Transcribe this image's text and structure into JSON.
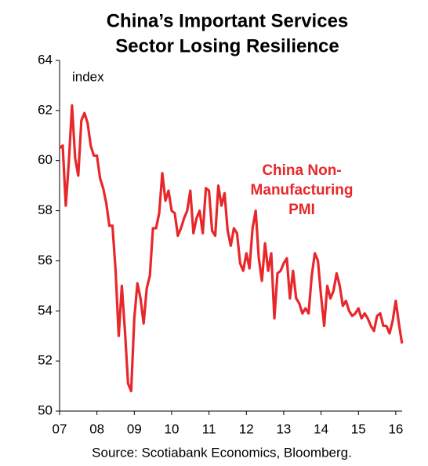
{
  "chart_data": {
    "type": "line",
    "title": [
      "China’s Important Services",
      "Sector Losing Resilience"
    ],
    "y_label": "index",
    "annotation": [
      "China Non-",
      "Manufacturing",
      "PMI"
    ],
    "source": "Source: Scotiabank Economics, Bloomberg.",
    "x_start": 7,
    "x_step": 0.08333,
    "series": [
      {
        "name": "China Non-Manufacturing PMI",
        "color": "#e8272b",
        "values": [
          60.5,
          60.6,
          58.2,
          60,
          62.2,
          60.1,
          59.4,
          61.6,
          61.9,
          61.5,
          60.6,
          60.2,
          60.2,
          59.3,
          58.9,
          58.3,
          57.4,
          57.4,
          55.6,
          53.0,
          55.0,
          53.2,
          51.1,
          50.8,
          53.7,
          55.1,
          54.5,
          53.5,
          54.9,
          55.4,
          57.3,
          57.3,
          57.9,
          59.5,
          58.4,
          58.8,
          58.0,
          57.9,
          57.0,
          57.3,
          57.7,
          58.0,
          58.8,
          57.1,
          57.7,
          58.0,
          57.1,
          58.9,
          58.8,
          57.2,
          57.0,
          59.0,
          58.2,
          58.7,
          57.2,
          56.6,
          57.3,
          57.1,
          55.9,
          55.6,
          56.3,
          55.7,
          57.3,
          58.0,
          56.1,
          55.2,
          56.7,
          55.6,
          56.3,
          53.7,
          55.5,
          55.6,
          55.9,
          56.1,
          54.5,
          55.6,
          54.5,
          54.3,
          53.9,
          54.1,
          53.9,
          55.4,
          56.3,
          56.0,
          54.6,
          53.4,
          55.0,
          54.5,
          54.8,
          55.5,
          55.0,
          54.2,
          54.4,
          54.0,
          53.8,
          53.9,
          54.1,
          53.7,
          53.9,
          53.7,
          53.4,
          53.2,
          53.8,
          53.9,
          53.4,
          53.4,
          53.1,
          53.6,
          54.4,
          53.5,
          52.7
        ]
      }
    ],
    "xlim": [
      7,
      16.17
    ],
    "xticks": [
      {
        "value": 7,
        "label": "07"
      },
      {
        "value": 8,
        "label": "08"
      },
      {
        "value": 9,
        "label": "09"
      },
      10,
      11,
      12,
      13,
      14,
      15,
      16
    ],
    "ylim": [
      50,
      64
    ],
    "yticks": [
      50,
      52,
      54,
      56,
      58,
      60,
      62,
      64
    ]
  }
}
